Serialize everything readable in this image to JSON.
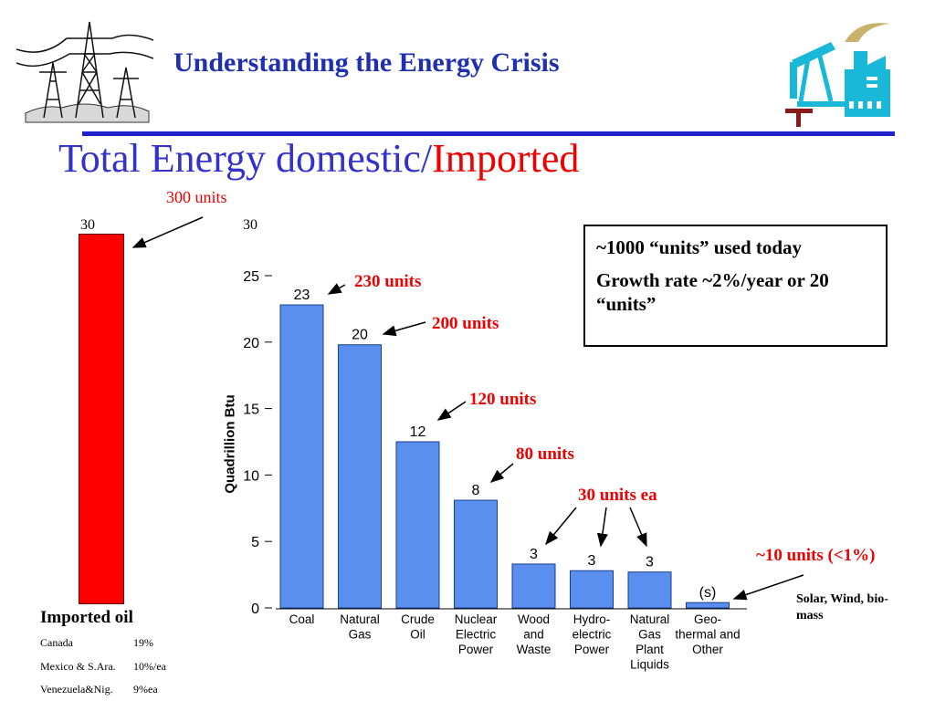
{
  "header": {
    "title": "Understanding the Energy Crisis",
    "left_icon": "power-tower-icon",
    "right_icon": "oil-pump-factory-icon"
  },
  "slide_title": {
    "part1": "Total Energy domestic/",
    "part2": "Imported"
  },
  "imported": {
    "total_label": "300 units",
    "bar_top_left": "30",
    "bar_top_right": "30",
    "oil_label": "Imported oil",
    "rows": [
      {
        "name": "Canada",
        "value": "19%"
      },
      {
        "name": "Mexico & S.Ara.",
        "value": "10%/ea"
      },
      {
        "name": "Venezuela&Nig.",
        "value": "9%ea"
      }
    ]
  },
  "info_box": {
    "line1": "~1000 “units” used today",
    "line2": "Growth rate ~2%/year or 20 “units”"
  },
  "annotations": {
    "coal": "230 units",
    "gas": "200 units",
    "oil": "120 units",
    "nuclear": "80 units",
    "renew3": "30 units ea",
    "other": "~10 units (<1%)",
    "other_note": "Solar, Wind, bio-mass"
  },
  "colors": {
    "bar": "#5a8fef",
    "title": "#1f2fb0",
    "red": "#ee0000"
  },
  "chart_data": {
    "type": "bar",
    "ylabel": "Quadrillion Btu",
    "ylim": [
      0,
      25
    ],
    "yticks": [
      0,
      5,
      10,
      15,
      20,
      25
    ],
    "categories": [
      [
        "Coal"
      ],
      [
        "Natural",
        "Gas"
      ],
      [
        "Crude",
        "Oil"
      ],
      [
        "Nuclear",
        "Electric",
        "Power"
      ],
      [
        "Wood",
        "and",
        "Waste"
      ],
      [
        "Hydro-",
        "electric",
        "Power"
      ],
      [
        "Natural",
        "Gas",
        "Plant",
        "Liquids"
      ],
      [
        "Geo-",
        "thermal and",
        "Other"
      ]
    ],
    "values": [
      22.8,
      19.8,
      12.5,
      8.1,
      3.3,
      2.8,
      2.7,
      0.4
    ],
    "data_labels": [
      "23",
      "20",
      "12",
      "8",
      "3",
      "3",
      "3",
      "(s)"
    ]
  }
}
